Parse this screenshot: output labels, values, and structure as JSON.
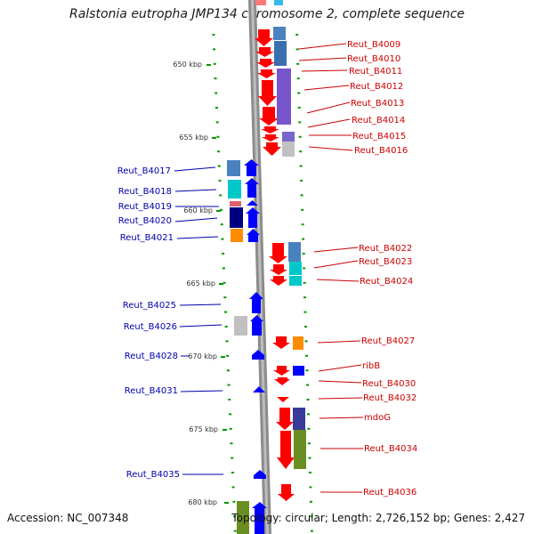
{
  "title": "Ralstonia eutropha JMP134 chromosome 2, complete sequence",
  "accession": "Accession: NC_007348",
  "topology": "Topology: circular; Length: 2,726,152 bp; Genes: 2,427",
  "scale_labels": [
    "650 kbp",
    "655 kbp",
    "660 kbp",
    "665 kbp",
    "670 kbp",
    "675 kbp",
    "680 kbp"
  ],
  "colors": {
    "forward_arrow": "#ff0000",
    "reverse_arrow": "#0000ff",
    "label_forward": "#cc0000",
    "label_reverse": "#0000aa",
    "tick": "#009900",
    "backbone": "#8c8c8c"
  },
  "genes_right": [
    "Reut_B4009",
    "Reut_B4010",
    "Reut_B4011",
    "Reut_B4012",
    "Reut_B4013",
    "Reut_B4014",
    "Reut_B4015",
    "Reut_B4016",
    "Reut_B4022",
    "Reut_B4023",
    "Reut_B4024",
    "Reut_B4027",
    "ribB",
    "Reut_B4030",
    "Reut_B4032",
    "mdoG",
    "Reut_B4034",
    "Reut_B4036"
  ],
  "genes_left": [
    "Reut_B4017",
    "Reut_B4018",
    "Reut_B4019",
    "Reut_B4020",
    "Reut_B4021",
    "Reut_B4025",
    "Reut_B4026",
    "Reut_B4028",
    "Reut_B4031",
    "Reut_B4035"
  ]
}
